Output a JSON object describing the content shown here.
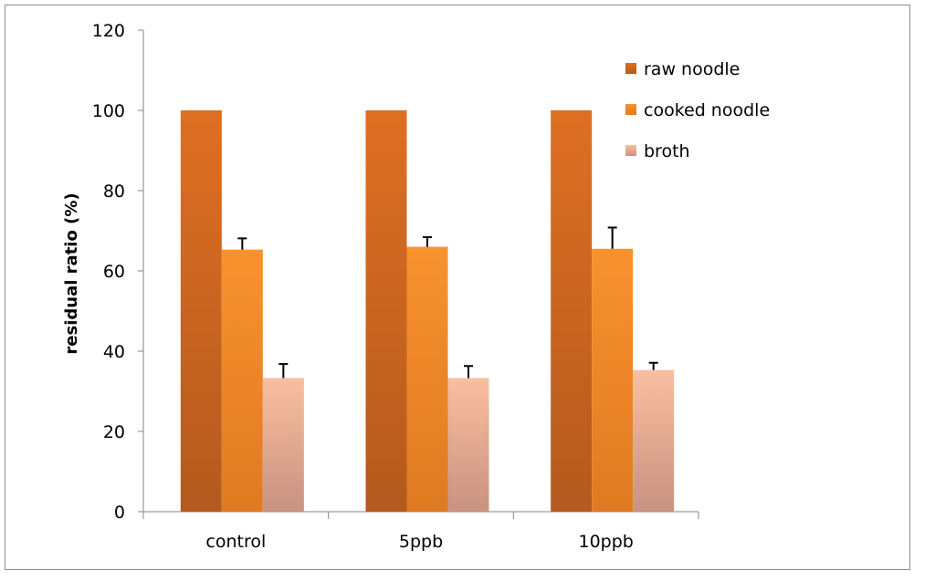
{
  "chart_data": {
    "type": "bar",
    "title": "",
    "xlabel": "",
    "ylabel": "residual ratio (%)",
    "ylim": [
      0,
      120
    ],
    "yticks": [
      0,
      20,
      40,
      60,
      80,
      100,
      120
    ],
    "grid": false,
    "legend_position": "top-right",
    "categories": [
      "control",
      "5ppb",
      "10ppb"
    ],
    "series": [
      {
        "name": "raw noodle",
        "color": "#D8671F",
        "values": [
          100,
          100,
          100
        ],
        "errors": [
          0,
          0,
          0
        ]
      },
      {
        "name": "cooked noodle",
        "color": "#F58A2A",
        "values": [
          65.3,
          66.0,
          65.5
        ],
        "errors": [
          2.8,
          2.4,
          5.3
        ]
      },
      {
        "name": "broth",
        "color": "#F6B99E",
        "values": [
          33.3,
          33.3,
          35.3
        ],
        "errors": [
          3.5,
          3.0,
          1.8
        ]
      }
    ]
  }
}
